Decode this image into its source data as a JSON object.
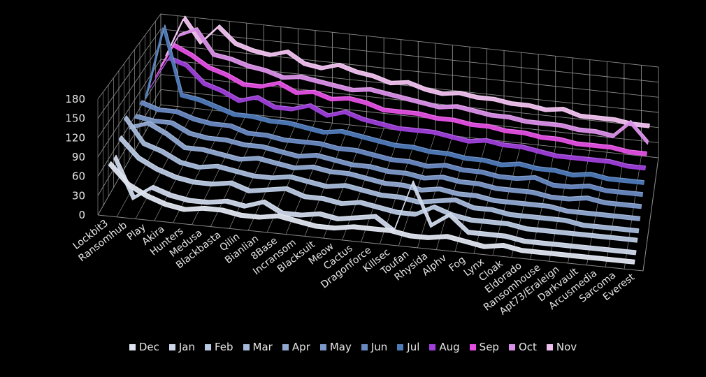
{
  "chart_data": {
    "type": "line",
    "style": "3d-ribbon",
    "y_ticks": [
      "0",
      "30",
      "60",
      "90",
      "120",
      "150",
      "180"
    ],
    "ylim": [
      0,
      180
    ],
    "grid": true,
    "legend_position": "bottom",
    "categories": [
      "Lockbit3",
      "Ransomhub",
      "Play",
      "Akira",
      "Hunters",
      "Medusa",
      "Blackbasta",
      "Qilin",
      "Bianlian",
      "8Base",
      "Incransom",
      "Blacksuit",
      "Meow",
      "Cactus",
      "Dragonforce",
      "Killsec",
      "Toufan",
      "Rhysida",
      "Alphv",
      "Fog",
      "Lynx",
      "Cloak",
      "Eldorado",
      "Ransomhouse",
      "Apt73/Eraleign",
      "Darkvault",
      "Arcusmedia",
      "Sarcoma",
      "Everest"
    ],
    "series": [
      {
        "name": "Dec",
        "color": "#dde3ee",
        "values": [
          75,
          45,
          30,
          20,
          15,
          20,
          20,
          15,
          15,
          20,
          15,
          10,
          10,
          15,
          15,
          15,
          10,
          10,
          15,
          10,
          5,
          10,
          5,
          5,
          5,
          5,
          5,
          5,
          5
        ]
      },
      {
        "name": "Jan",
        "color": "#ccd6e8",
        "values": [
          72,
          10,
          30,
          20,
          15,
          15,
          20,
          15,
          25,
          10,
          10,
          15,
          10,
          15,
          20,
          0,
          80,
          15,
          35,
          10,
          10,
          10,
          5,
          5,
          5,
          5,
          5,
          5,
          5
        ]
      },
      {
        "name": "Feb",
        "color": "#b8c8e0",
        "values": [
          90,
          60,
          45,
          35,
          30,
          30,
          35,
          25,
          30,
          35,
          25,
          25,
          20,
          25,
          20,
          15,
          15,
          30,
          20,
          15,
          15,
          15,
          10,
          10,
          10,
          10,
          10,
          10,
          10
        ]
      },
      {
        "name": "Mar",
        "color": "#a4b8d8",
        "values": [
          110,
          70,
          60,
          45,
          40,
          45,
          40,
          35,
          35,
          40,
          35,
          30,
          35,
          30,
          25,
          25,
          20,
          25,
          30,
          20,
          20,
          15,
          15,
          15,
          15,
          10,
          10,
          10,
          10
        ]
      },
      {
        "name": "Apr",
        "color": "#90a8d0",
        "values": [
          80,
          90,
          75,
          55,
          55,
          50,
          45,
          50,
          45,
          40,
          45,
          40,
          40,
          35,
          30,
          30,
          25,
          30,
          25,
          25,
          20,
          20,
          20,
          20,
          15,
          15,
          15,
          15,
          15
        ]
      },
      {
        "name": "May",
        "color": "#7c98c8",
        "values": [
          85,
          80,
          80,
          65,
          60,
          60,
          55,
          55,
          50,
          45,
          50,
          45,
          40,
          40,
          35,
          35,
          30,
          35,
          30,
          30,
          25,
          25,
          25,
          20,
          20,
          25,
          20,
          20,
          20
        ]
      },
      {
        "name": "Jun",
        "color": "#6888c0",
        "values": [
          95,
          85,
          85,
          75,
          70,
          70,
          60,
          60,
          55,
          55,
          55,
          50,
          50,
          45,
          40,
          40,
          35,
          40,
          35,
          35,
          30,
          30,
          35,
          25,
          25,
          30,
          25,
          25,
          25
        ]
      },
      {
        "name": "Jul",
        "color": "#4f7ab8",
        "values": [
          90,
          220,
          100,
          95,
          85,
          75,
          75,
          70,
          70,
          65,
          60,
          65,
          60,
          55,
          50,
          50,
          45,
          45,
          40,
          40,
          35,
          40,
          35,
          35,
          30,
          35,
          30,
          30,
          30
        ]
      },
      {
        "name": "Aug",
        "color": "#9d3fd8",
        "values": [
          95,
          150,
          140,
          110,
          100,
          85,
          95,
          80,
          80,
          90,
          75,
          85,
          75,
          70,
          65,
          65,
          65,
          60,
          55,
          60,
          55,
          55,
          50,
          45,
          45,
          45,
          45,
          40,
          40
        ]
      },
      {
        "name": "Sep",
        "color": "#e24fe0",
        "values": [
          100,
          160,
          145,
          125,
          115,
          100,
          100,
          110,
          95,
          100,
          90,
          95,
          90,
          80,
          80,
          80,
          75,
          75,
          70,
          70,
          65,
          65,
          60,
          60,
          55,
          55,
          55,
          50,
          50
        ]
      },
      {
        "name": "Oct",
        "color": "#d88ee6",
        "values": [
          105,
          165,
          180,
          135,
          130,
          120,
          115,
          105,
          110,
          105,
          100,
          95,
          100,
          95,
          90,
          85,
          80,
          85,
          80,
          75,
          75,
          70,
          70,
          70,
          65,
          65,
          60,
          90,
          55
        ]
      },
      {
        "name": "Nov",
        "color": "#efc0ee",
        "values": [
          110,
          185,
          140,
          175,
          145,
          135,
          130,
          140,
          120,
          115,
          125,
          115,
          110,
          100,
          105,
          95,
          90,
          95,
          90,
          90,
          85,
          85,
          80,
          85,
          75,
          75,
          75,
          70,
          70
        ]
      }
    ]
  }
}
